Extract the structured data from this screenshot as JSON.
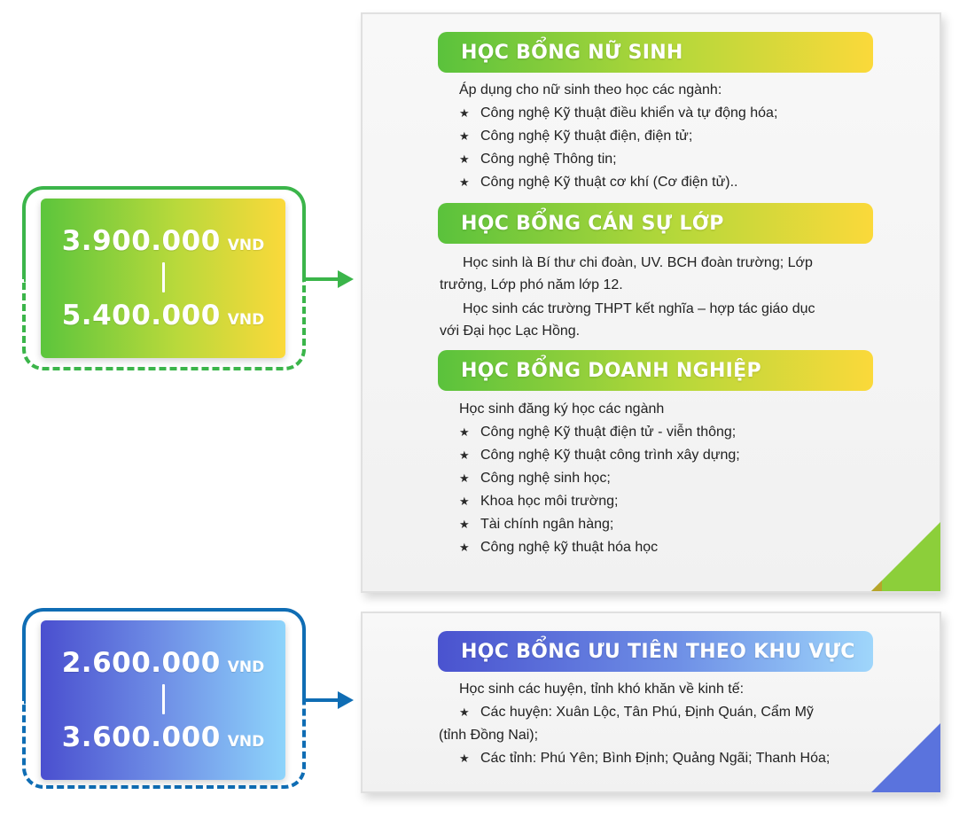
{
  "amounts": [
    {
      "from": "3.900.000",
      "to": "5.400.000",
      "unit": "VND",
      "color": "#3bb54a",
      "gradient": [
        "#5cc53c",
        "#fbd93a"
      ]
    },
    {
      "from": "2.600.000",
      "to": "3.600.000",
      "unit": "VND",
      "color": "#0f6db4",
      "gradient": [
        "#4a4fcf",
        "#8ed4fb"
      ]
    }
  ],
  "sections": {
    "female": {
      "title": "HỌC BỔNG NỮ SINH",
      "intro": "Áp dụng cho nữ sinh theo học các ngành:",
      "items": [
        "Công nghệ Kỹ thuật điều khiển và tự động hóa;",
        "Công nghệ Kỹ thuật điện, điện tử;",
        "Công nghệ Thông tin;",
        "Công nghệ Kỹ thuật cơ khí (Cơ điện tử).."
      ]
    },
    "cadre": {
      "title": "HỌC BỔNG CÁN SỰ LỚP",
      "lines": [
        "Học sinh là Bí thư chi đoàn, UV. BCH đoàn trường; Lớp",
        "trưởng, Lớp phó năm lớp 12.",
        "Học sinh các trường THPT kết nghĩa – hợp tác giáo dục",
        "với Đại học Lạc Hồng."
      ]
    },
    "enterprise": {
      "title": "HỌC BỔNG DOANH NGHIỆP",
      "intro": "Học sinh đăng ký học các ngành",
      "items": [
        "Công nghệ Kỹ thuật điện tử - viễn thông;",
        "Công nghệ Kỹ thuật công trình xây dựng;",
        "Công nghệ sinh học;",
        "Khoa học môi trường;",
        "Tài chính ngân hàng;",
        "Công nghệ kỹ thuật hóa học"
      ]
    },
    "region": {
      "title": "HỌC BỔNG ƯU TIÊN THEO KHU VỰC",
      "intro": "Học sinh các huyện, tỉnh khó khăn về kinh tế:",
      "item1": "Các huyện: Xuân Lộc, Tân Phú, Định Quán, Cẩm Mỹ",
      "item1_cont": "(tỉnh Đồng Nai);",
      "item2": "Các tỉnh: Phú Yên; Bình Định; Quảng Ngãi; Thanh Hóa;"
    }
  },
  "bullet_icon": "star-icon"
}
